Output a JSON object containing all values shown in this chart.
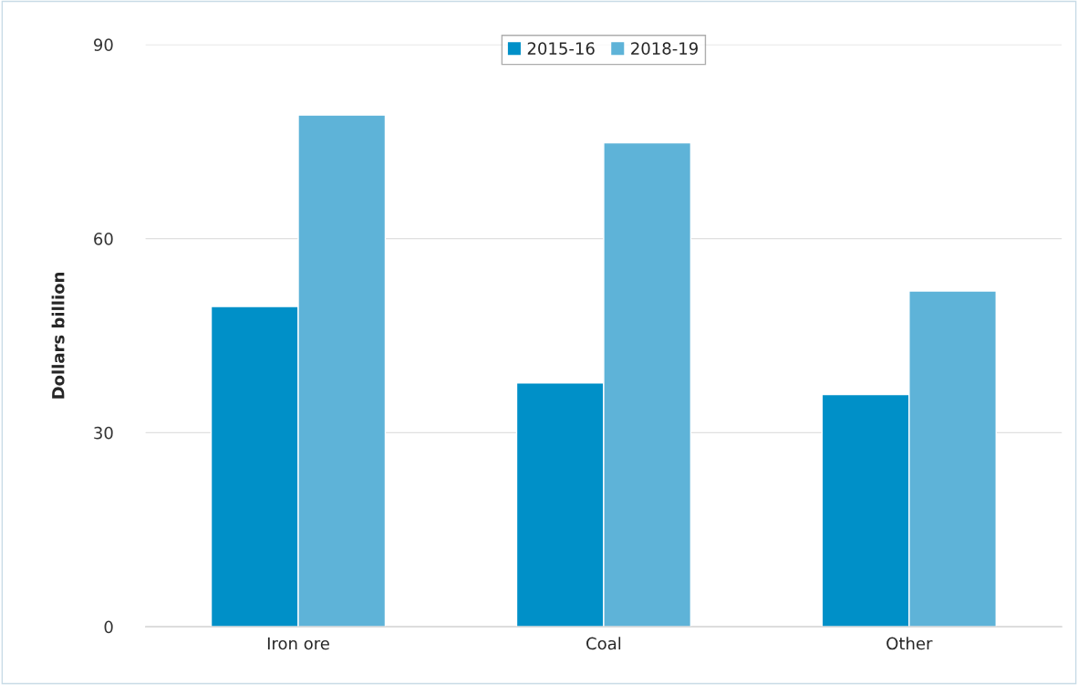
{
  "chart_data": {
    "type": "bar",
    "ylabel": "Dollars billion",
    "categories": [
      "Iron ore",
      "Coal",
      "Other"
    ],
    "series": [
      {
        "name": "2015-16",
        "color": "#0090c8",
        "values": [
          49.5,
          37.7,
          35.9
        ]
      },
      {
        "name": "2018-19",
        "color": "#5eb3d8",
        "values": [
          79.1,
          74.8,
          51.9
        ]
      }
    ],
    "ylim": [
      0,
      90
    ],
    "yticks": [
      0,
      30,
      60,
      90
    ],
    "grid": "y",
    "legend": "top"
  }
}
